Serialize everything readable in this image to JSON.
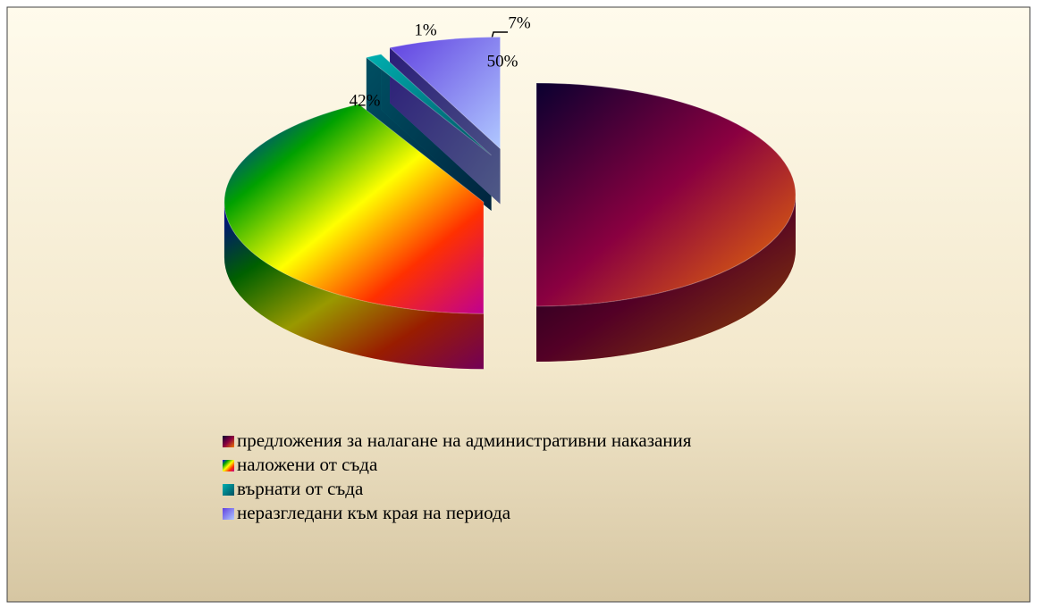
{
  "chart_data": {
    "type": "pie",
    "categories": [
      "предложения за налагане на административни наказания",
      "наложени от съда",
      "върнати от съда",
      "неразгледани към края на периода"
    ],
    "values": [
      50,
      42,
      1,
      7
    ],
    "value_labels": [
      "50%",
      "42%",
      "1%",
      "7%"
    ],
    "colors": [
      [
        "#0a0030",
        "#8a0040",
        "#f07800"
      ],
      [
        "#0000ff",
        "#00a000",
        "#ffff00",
        "#ff3000",
        "#c00090"
      ],
      [
        "#00b0b0",
        "#005060"
      ],
      [
        "#6040e0",
        "#b0c8ff"
      ]
    ]
  }
}
